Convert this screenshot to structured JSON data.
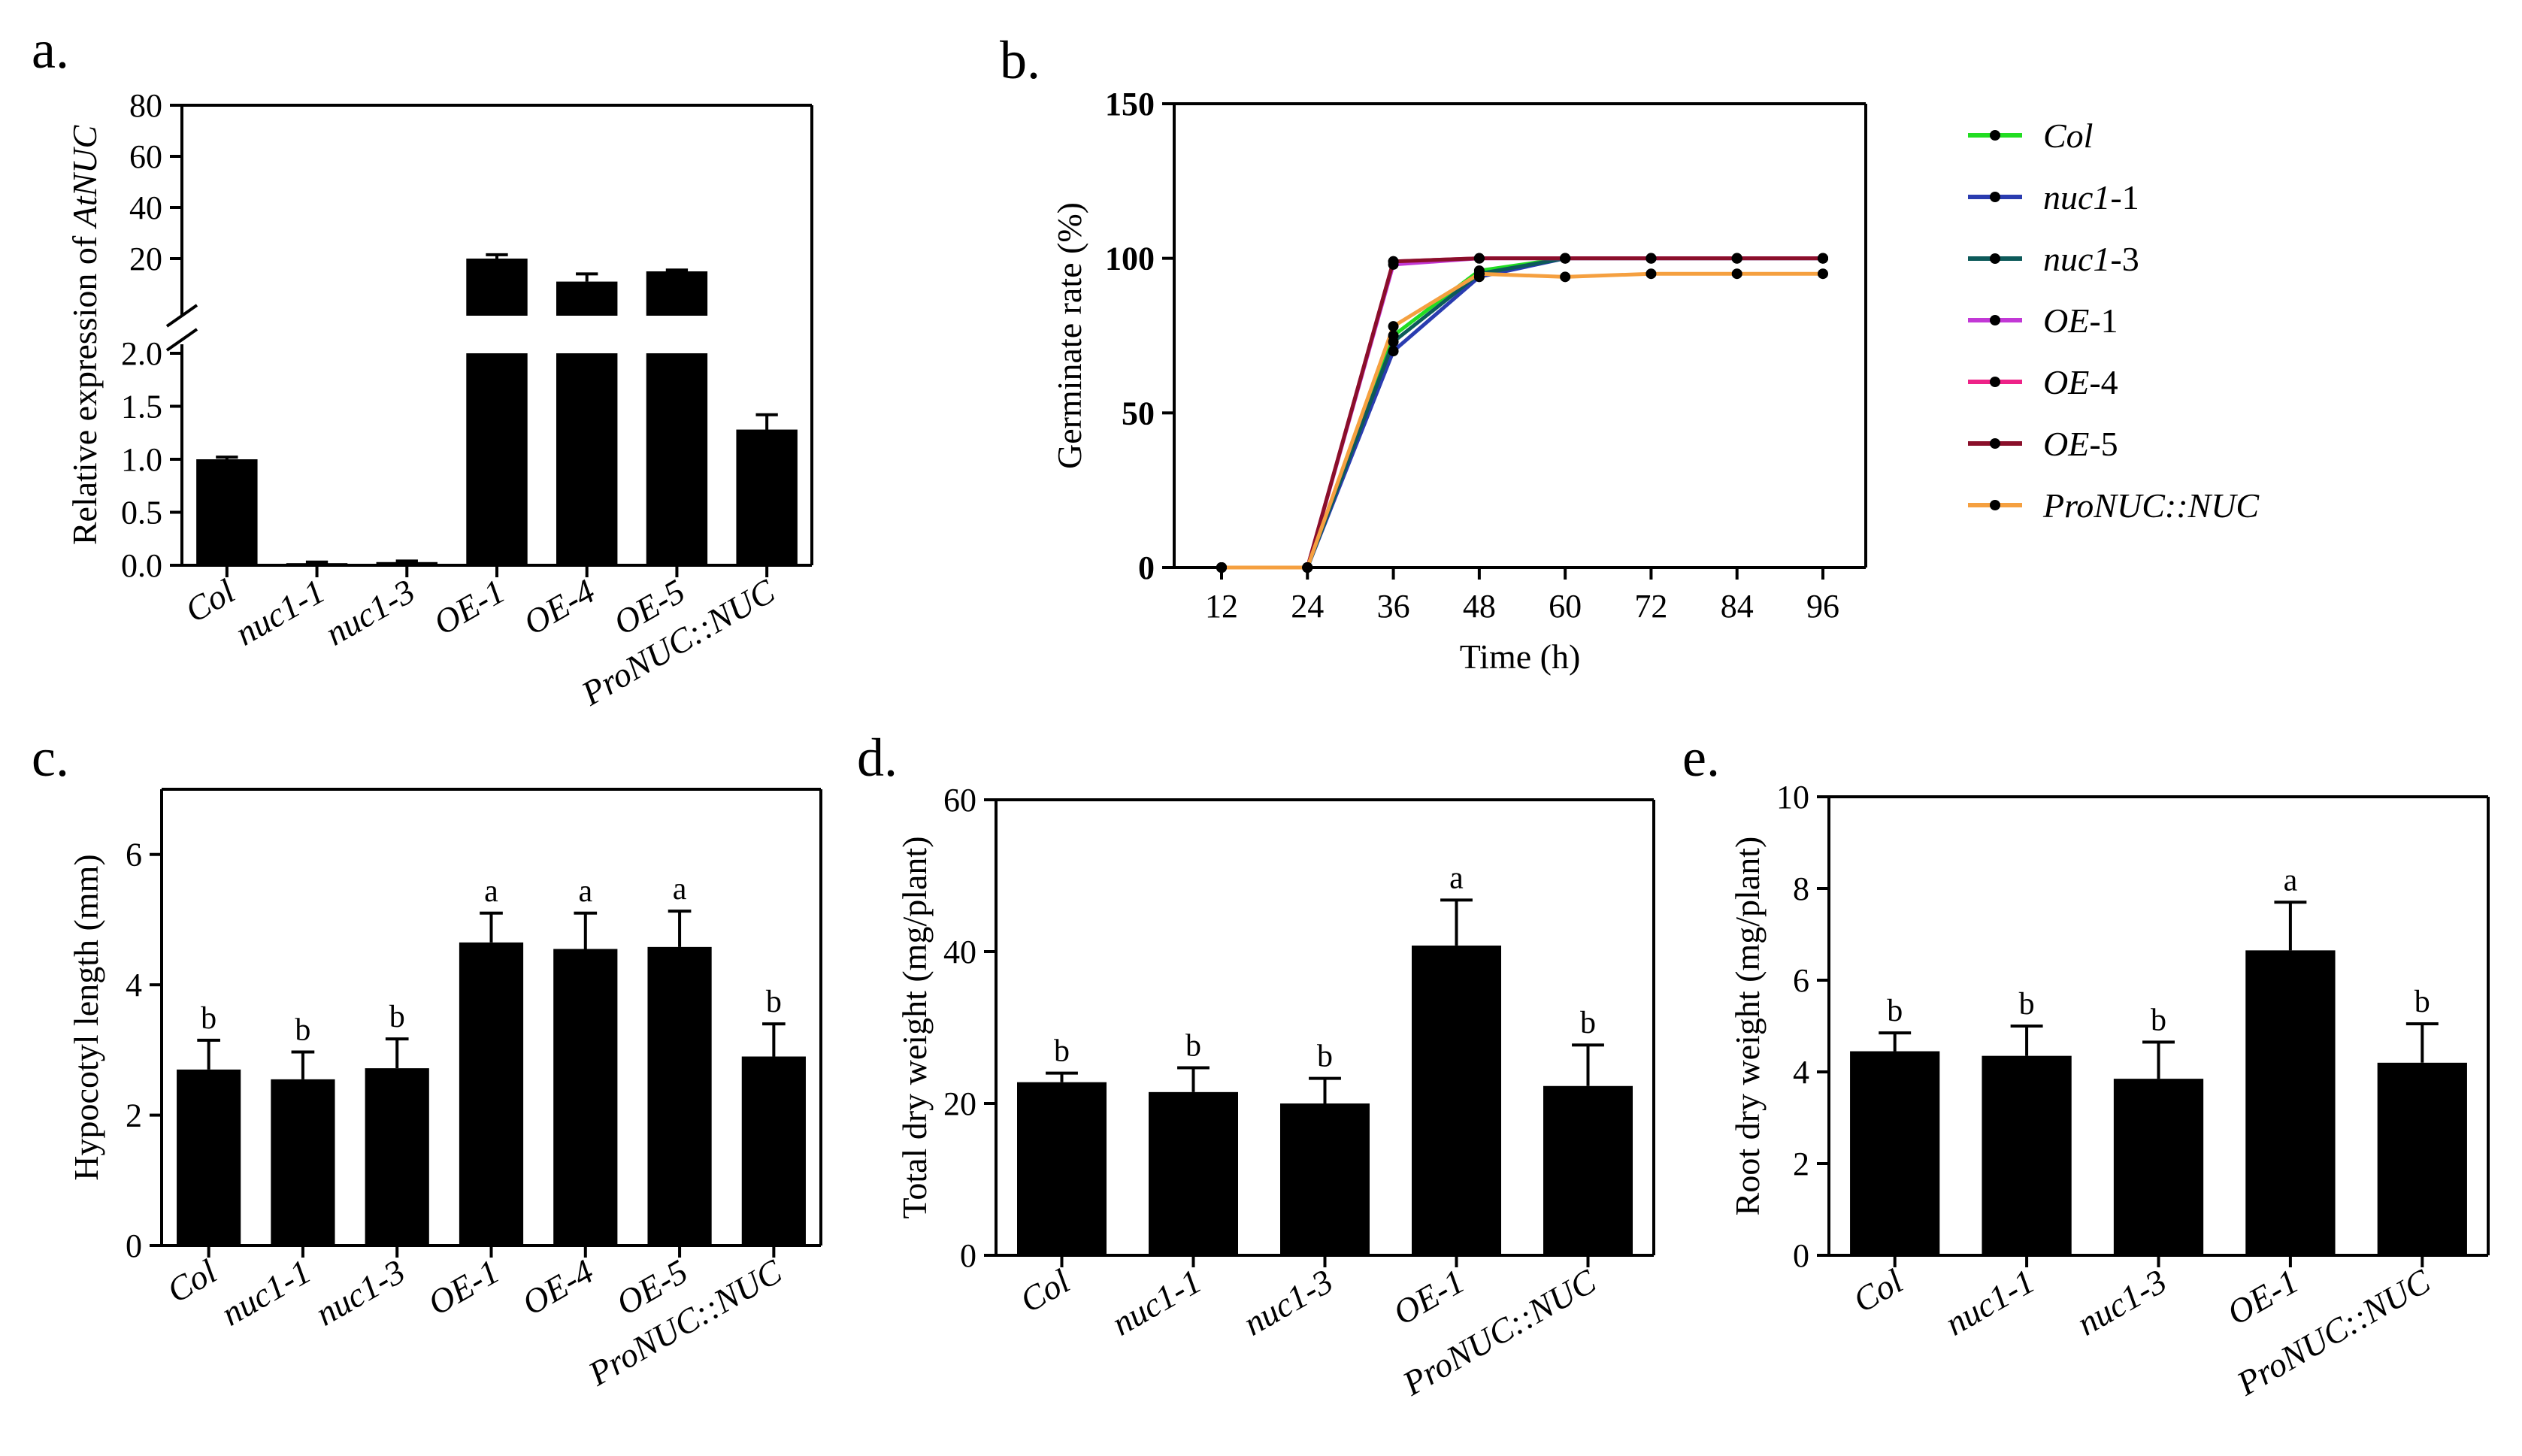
{
  "panels": {
    "a": "a.",
    "b": "b.",
    "c": "c.",
    "d": "d.",
    "e": "e."
  },
  "chart_data": [
    {
      "id": "a",
      "type": "bar",
      "ylabel_prefix": "Relative expression of ",
      "ylabel_italic": "AtNUC",
      "categories": [
        "Col",
        "nuc1-1",
        "nuc1-3",
        "OE-1",
        "OE-4",
        "OE-5",
        "ProNUC::NUC"
      ],
      "values": [
        1.0,
        0.02,
        0.03,
        20,
        11,
        15,
        1.28
      ],
      "errors": [
        0.02,
        0.01,
        0.01,
        1.5,
        3,
        0.5,
        0.14
      ],
      "broken_axis": {
        "lower": {
          "range": [
            0,
            2.0
          ],
          "ticks": [
            "0.0",
            "0.5",
            "1.0",
            "1.5",
            "2.0"
          ]
        },
        "upper": {
          "range": [
            0,
            80
          ],
          "ticks": [
            "20",
            "40",
            "60",
            "80"
          ]
        }
      }
    },
    {
      "id": "b",
      "type": "line",
      "xlabel": "Time (h)",
      "ylabel": "Germinate rate (%)",
      "x": [
        12,
        24,
        36,
        48,
        60,
        72,
        84,
        96
      ],
      "xlim": [
        12,
        96
      ],
      "ylim": [
        0,
        150
      ],
      "yticks": [
        "0",
        "50",
        "100",
        "150"
      ],
      "xticks": [
        "12",
        "24",
        "36",
        "48",
        "60",
        "72",
        "84",
        "96"
      ],
      "series": [
        {
          "name": "Col",
          "italic_part": "Col",
          "plain_part": "",
          "color": "#22dd22",
          "values": [
            0,
            0,
            75,
            96,
            100,
            100,
            100,
            100
          ]
        },
        {
          "name": "nuc1-1",
          "italic_part": "nuc1",
          "plain_part": "-1",
          "color": "#2a3cb0",
          "values": [
            0,
            0,
            70,
            94,
            100,
            100,
            100,
            100
          ]
        },
        {
          "name": "nuc1-3",
          "italic_part": "nuc1",
          "plain_part": "-3",
          "color": "#0d5a5a",
          "values": [
            0,
            0,
            73,
            95,
            100,
            100,
            100,
            100
          ]
        },
        {
          "name": "OE-1",
          "italic_part": "OE",
          "plain_part": "-1",
          "color": "#c238d6",
          "values": [
            0,
            0,
            98,
            100,
            100,
            100,
            100,
            100
          ]
        },
        {
          "name": "OE-4",
          "italic_part": "OE",
          "plain_part": "-4",
          "color": "#ee2288",
          "values": [
            0,
            0,
            99,
            100,
            100,
            100,
            100,
            100
          ]
        },
        {
          "name": "OE-5",
          "italic_part": "OE",
          "plain_part": "-5",
          "color": "#8a0f2a",
          "values": [
            0,
            0,
            99,
            100,
            100,
            100,
            100,
            100
          ]
        },
        {
          "name": "ProNUC::NUC",
          "italic_part": "ProNUC::NUC",
          "plain_part": "",
          "color": "#f5a040",
          "values": [
            0,
            0,
            78,
            95,
            94,
            95,
            95,
            95
          ]
        }
      ]
    },
    {
      "id": "c",
      "type": "bar",
      "ylabel": "Hypocotyl length (mm)",
      "categories": [
        "Col",
        "nuc1-1",
        "nuc1-3",
        "OE-1",
        "OE-4",
        "OE-5",
        "ProNUC::NUC"
      ],
      "values": [
        2.7,
        2.55,
        2.72,
        4.65,
        4.55,
        4.58,
        2.9
      ],
      "errors": [
        0.45,
        0.42,
        0.45,
        0.45,
        0.55,
        0.55,
        0.5
      ],
      "letters": [
        "b",
        "b",
        "b",
        "a",
        "a",
        "a",
        "b"
      ],
      "ylim": [
        0,
        7
      ],
      "yticks": [
        "0",
        "2",
        "4",
        "6"
      ]
    },
    {
      "id": "d",
      "type": "bar",
      "ylabel": "Total dry weight (mg/plant)",
      "categories": [
        "Col",
        "nuc1-1",
        "nuc1-3",
        "OE-1",
        "ProNUC::NUC"
      ],
      "values": [
        22.8,
        21.5,
        20,
        40.8,
        22.3
      ],
      "errors": [
        1.2,
        3.2,
        3.3,
        6,
        5.4
      ],
      "letters": [
        "b",
        "b",
        "b",
        "a",
        "b"
      ],
      "ylim": [
        0,
        60
      ],
      "yticks": [
        "0",
        "20",
        "40",
        "60"
      ]
    },
    {
      "id": "e",
      "type": "bar",
      "ylabel": "Root dry weight (mg/plant)",
      "categories": [
        "Col",
        "nuc1-1",
        "nuc1-3",
        "OE-1",
        "ProNUC::NUC"
      ],
      "values": [
        4.45,
        4.35,
        3.85,
        6.65,
        4.2
      ],
      "errors": [
        0.4,
        0.65,
        0.8,
        1.05,
        0.85
      ],
      "letters": [
        "b",
        "b",
        "b",
        "a",
        "b"
      ],
      "ylim": [
        0,
        10
      ],
      "yticks": [
        "0",
        "2",
        "4",
        "6",
        "8",
        "10"
      ]
    }
  ]
}
